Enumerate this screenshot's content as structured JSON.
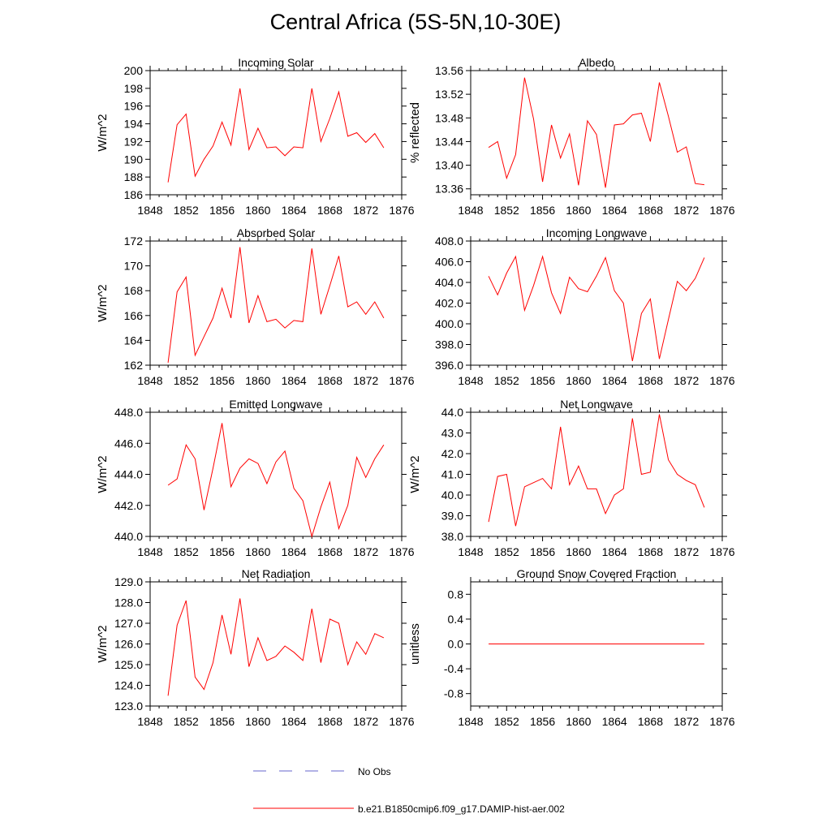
{
  "figure": {
    "title": "Central Africa (5S-5N,10-30E)",
    "legend": [
      {
        "label": "No Obs",
        "color": "#6666cc",
        "style": "dashed"
      },
      {
        "label": "b.e21.B1850cmip6.f09_g17.DAMIP-hist-aer.002",
        "color": "#ff0000",
        "style": "solid"
      }
    ]
  },
  "chart_data": [
    {
      "type": "line",
      "title": "Incoming Solar",
      "ylabel": "W/m^2",
      "xlabel": "",
      "xlim": [
        1848,
        1876
      ],
      "ylim": [
        186,
        200
      ],
      "xticks": [
        1848,
        1852,
        1856,
        1860,
        1864,
        1868,
        1872,
        1876
      ],
      "yticks": [
        186,
        188,
        190,
        192,
        194,
        196,
        198,
        200
      ],
      "ytick_decimals": 0,
      "series": [
        {
          "name": "b.e21.B1850cmip6.f09_g17.DAMIP-hist-aer.002",
          "color": "#ff0000",
          "x": [
            1850,
            1851,
            1852,
            1853,
            1854,
            1855,
            1856,
            1857,
            1858,
            1859,
            1860,
            1861,
            1862,
            1863,
            1864,
            1865,
            1866,
            1867,
            1868,
            1869,
            1870,
            1871,
            1872,
            1873,
            1874
          ],
          "y": [
            187.4,
            193.9,
            195.1,
            188.1,
            190.0,
            191.5,
            194.2,
            191.6,
            198.0,
            191.1,
            193.5,
            191.3,
            191.4,
            190.4,
            191.4,
            191.3,
            198.0,
            192.0,
            194.6,
            197.6,
            192.6,
            193.0,
            191.9,
            192.9,
            191.3
          ]
        }
      ]
    },
    {
      "type": "line",
      "title": "Albedo",
      "ylabel": "% reflected",
      "xlabel": "",
      "xlim": [
        1848,
        1876
      ],
      "ylim": [
        13.35,
        13.56
      ],
      "xticks": [
        1848,
        1852,
        1856,
        1860,
        1864,
        1868,
        1872,
        1876
      ],
      "yticks": [
        13.36,
        13.4,
        13.44,
        13.48,
        13.52,
        13.56
      ],
      "ytick_decimals": 2,
      "series": [
        {
          "name": "b.e21.B1850cmip6.f09_g17.DAMIP-hist-aer.002",
          "color": "#ff0000",
          "x": [
            1850,
            1851,
            1852,
            1853,
            1854,
            1855,
            1856,
            1857,
            1858,
            1859,
            1860,
            1861,
            1862,
            1863,
            1864,
            1865,
            1866,
            1867,
            1868,
            1869,
            1870,
            1871,
            1872,
            1873,
            1874
          ],
          "y": [
            13.43,
            13.44,
            13.378,
            13.418,
            13.548,
            13.478,
            13.372,
            13.468,
            13.412,
            13.453,
            13.366,
            13.475,
            13.452,
            13.362,
            13.468,
            13.47,
            13.485,
            13.488,
            13.44,
            13.54,
            13.483,
            13.422,
            13.431,
            13.369,
            13.367
          ]
        }
      ]
    },
    {
      "type": "line",
      "title": "Absorbed Solar",
      "ylabel": "W/m^2",
      "xlabel": "",
      "xlim": [
        1848,
        1876
      ],
      "ylim": [
        162,
        172
      ],
      "xticks": [
        1848,
        1852,
        1856,
        1860,
        1864,
        1868,
        1872,
        1876
      ],
      "yticks": [
        162,
        164,
        166,
        168,
        170,
        172
      ],
      "ytick_decimals": 0,
      "series": [
        {
          "name": "b.e21.B1850cmip6.f09_g17.DAMIP-hist-aer.002",
          "color": "#ff0000",
          "x": [
            1850,
            1851,
            1852,
            1853,
            1854,
            1855,
            1856,
            1857,
            1858,
            1859,
            1860,
            1861,
            1862,
            1863,
            1864,
            1865,
            1866,
            1867,
            1868,
            1869,
            1870,
            1871,
            1872,
            1873,
            1874
          ],
          "y": [
            162.2,
            167.9,
            169.1,
            162.8,
            164.3,
            165.8,
            168.2,
            165.8,
            171.5,
            165.4,
            167.6,
            165.5,
            165.7,
            165.0,
            165.6,
            165.5,
            171.4,
            166.1,
            168.4,
            170.8,
            166.7,
            167.1,
            166.1,
            167.1,
            165.8
          ]
        }
      ]
    },
    {
      "type": "line",
      "title": "Incoming Longwave",
      "ylabel": "",
      "xlabel": "",
      "xlim": [
        1848,
        1876
      ],
      "ylim": [
        396,
        408
      ],
      "xticks": [
        1848,
        1852,
        1856,
        1860,
        1864,
        1868,
        1872,
        1876
      ],
      "yticks": [
        396,
        398,
        400,
        402,
        404,
        406,
        408
      ],
      "ytick_decimals": 1,
      "series": [
        {
          "name": "b.e21.B1850cmip6.f09_g17.DAMIP-hist-aer.002",
          "color": "#ff0000",
          "x": [
            1850,
            1851,
            1852,
            1853,
            1854,
            1855,
            1856,
            1857,
            1858,
            1859,
            1860,
            1861,
            1862,
            1863,
            1864,
            1865,
            1866,
            1867,
            1868,
            1869,
            1870,
            1871,
            1872,
            1873,
            1874
          ],
          "y": [
            404.6,
            402.8,
            404.9,
            406.5,
            401.3,
            403.7,
            406.5,
            403.0,
            401.0,
            404.5,
            403.4,
            403.1,
            404.6,
            406.4,
            403.2,
            402.0,
            396.4,
            401.0,
            402.4,
            396.6,
            400.4,
            404.1,
            403.2,
            404.4,
            406.4
          ]
        }
      ]
    },
    {
      "type": "line",
      "title": "Emitted Longwave",
      "ylabel": "W/m^2",
      "xlabel": "",
      "xlim": [
        1848,
        1876
      ],
      "ylim": [
        440,
        448
      ],
      "xticks": [
        1848,
        1852,
        1856,
        1860,
        1864,
        1868,
        1872,
        1876
      ],
      "yticks": [
        440,
        442,
        444,
        446,
        448
      ],
      "ytick_decimals": 1,
      "series": [
        {
          "name": "b.e21.B1850cmip6.f09_g17.DAMIP-hist-aer.002",
          "color": "#ff0000",
          "x": [
            1850,
            1851,
            1852,
            1853,
            1854,
            1855,
            1856,
            1857,
            1858,
            1859,
            1860,
            1861,
            1862,
            1863,
            1864,
            1865,
            1866,
            1867,
            1868,
            1869,
            1870,
            1871,
            1872,
            1873,
            1874
          ],
          "y": [
            443.3,
            443.7,
            445.9,
            445.0,
            441.7,
            444.4,
            447.3,
            443.2,
            444.4,
            445.0,
            444.7,
            443.4,
            444.8,
            445.5,
            443.1,
            442.3,
            440.0,
            441.9,
            443.5,
            440.5,
            442.0,
            445.1,
            443.8,
            445.0,
            445.9
          ]
        }
      ]
    },
    {
      "type": "line",
      "title": "Net Longwave",
      "ylabel": "W/m^2",
      "xlabel": "",
      "xlim": [
        1848,
        1876
      ],
      "ylim": [
        38,
        44
      ],
      "xticks": [
        1848,
        1852,
        1856,
        1860,
        1864,
        1868,
        1872,
        1876
      ],
      "yticks": [
        38,
        39,
        40,
        41,
        42,
        43,
        44
      ],
      "ytick_decimals": 1,
      "series": [
        {
          "name": "b.e21.B1850cmip6.f09_g17.DAMIP-hist-aer.002",
          "color": "#ff0000",
          "x": [
            1850,
            1851,
            1852,
            1853,
            1854,
            1855,
            1856,
            1857,
            1858,
            1859,
            1860,
            1861,
            1862,
            1863,
            1864,
            1865,
            1866,
            1867,
            1868,
            1869,
            1870,
            1871,
            1872,
            1873,
            1874
          ],
          "y": [
            38.7,
            40.9,
            41.0,
            38.5,
            40.4,
            40.6,
            40.8,
            40.3,
            43.3,
            40.5,
            41.4,
            40.3,
            40.3,
            39.1,
            40.0,
            40.3,
            43.7,
            41.0,
            41.1,
            43.9,
            41.7,
            41.0,
            40.7,
            40.5,
            39.4
          ]
        }
      ]
    },
    {
      "type": "line",
      "title": "Net Radiation",
      "ylabel": "W/m^2",
      "xlabel": "",
      "xlim": [
        1848,
        1876
      ],
      "ylim": [
        123,
        129
      ],
      "xticks": [
        1848,
        1852,
        1856,
        1860,
        1864,
        1868,
        1872,
        1876
      ],
      "yticks": [
        123,
        124,
        125,
        126,
        127,
        128,
        129
      ],
      "ytick_decimals": 1,
      "series": [
        {
          "name": "b.e21.B1850cmip6.f09_g17.DAMIP-hist-aer.002",
          "color": "#ff0000",
          "x": [
            1850,
            1851,
            1852,
            1853,
            1854,
            1855,
            1856,
            1857,
            1858,
            1859,
            1860,
            1861,
            1862,
            1863,
            1864,
            1865,
            1866,
            1867,
            1868,
            1869,
            1870,
            1871,
            1872,
            1873,
            1874
          ],
          "y": [
            123.5,
            126.9,
            128.1,
            124.4,
            123.8,
            125.1,
            127.4,
            125.5,
            128.2,
            124.9,
            126.3,
            125.2,
            125.4,
            125.9,
            125.6,
            125.2,
            127.7,
            125.1,
            127.2,
            127.0,
            125.0,
            126.1,
            125.5,
            126.5,
            126.3
          ]
        }
      ]
    },
    {
      "type": "line",
      "title": "Ground Snow Covered Fraction",
      "ylabel": "unitless",
      "xlabel": "",
      "xlim": [
        1848,
        1876
      ],
      "ylim": [
        -1.0,
        1.0
      ],
      "xticks": [
        1848,
        1852,
        1856,
        1860,
        1864,
        1868,
        1872,
        1876
      ],
      "yticks": [
        -0.8,
        -0.4,
        0.0,
        0.4,
        0.8
      ],
      "ytick_decimals": 1,
      "series": [
        {
          "name": "b.e21.B1850cmip6.f09_g17.DAMIP-hist-aer.002",
          "color": "#ff0000",
          "x": [
            1850,
            1874
          ],
          "y": [
            0.0,
            0.0
          ]
        }
      ]
    }
  ]
}
